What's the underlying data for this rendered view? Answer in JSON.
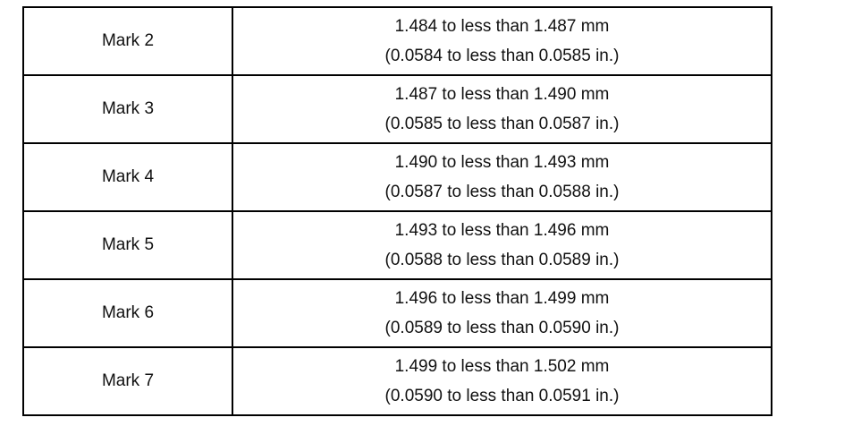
{
  "table": {
    "rows": [
      [
        "Mark 2",
        "1.484 to less than 1.487 mm",
        "(0.0584 to less than 0.0585 in.)"
      ],
      [
        "Mark 3",
        "1.487 to less than 1.490 mm",
        "(0.0585 to less than 0.0587 in.)"
      ],
      [
        "Mark 4",
        "1.490 to less than 1.493 mm",
        "(0.0587 to less than 0.0588 in.)"
      ],
      [
        "Mark 5",
        "1.493 to less than 1.496 mm",
        "(0.0588 to less than 0.0589 in.)"
      ],
      [
        "Mark 6",
        "1.496 to less than 1.499 mm",
        "(0.0589 to less than 0.0590 in.)"
      ],
      [
        "Mark 7",
        "1.499 to less than 1.502 mm",
        "(0.0590 to less than 0.0591 in.)"
      ]
    ]
  }
}
